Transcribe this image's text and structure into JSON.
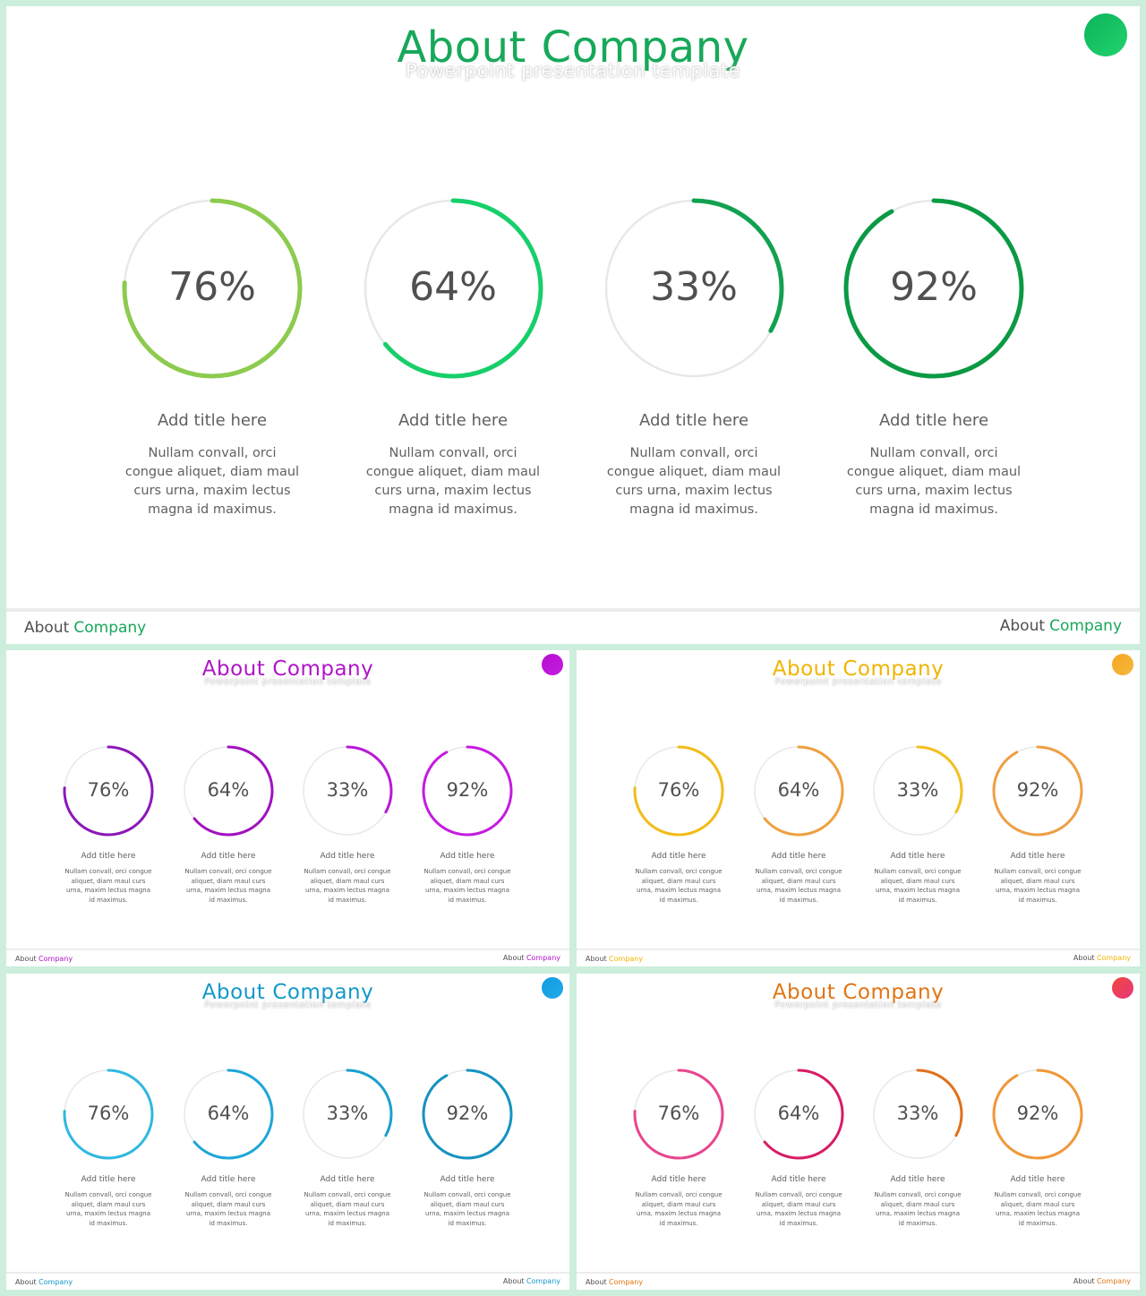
{
  "slides": [
    {
      "id": "green",
      "title_word1": "About",
      "title_word2": "Company",
      "subtitle": "Powerpoint presentation template",
      "accent": "#17a85a",
      "dot_colors": [
        "#0bb35a",
        "#22d36e"
      ],
      "footer": {
        "left_word1": "About",
        "left_word2": "Company",
        "right_word1": "About",
        "right_word2": "Company"
      },
      "items": [
        {
          "value": 76,
          "label": "76%",
          "ring_color": "#8ccb4e",
          "title": "Add title here",
          "desc": "Nullam convall, orci congue aliquet, diam maul curs urna, maxim lectus magna id maximus."
        },
        {
          "value": 64,
          "label": "64%",
          "ring_color": "#17cf6a",
          "title": "Add title here",
          "desc": "Nullam convall, orci congue aliquet, diam maul curs urna, maxim lectus magna id maximus."
        },
        {
          "value": 33,
          "label": "33%",
          "ring_color": "#12a150",
          "title": "Add title here",
          "desc": "Nullam convall, orci congue aliquet, diam maul curs urna, maxim lectus magna id maximus."
        },
        {
          "value": 92,
          "label": "92%",
          "ring_color": "#0b9a44",
          "title": "Add title here",
          "desc": "Nullam convall, orci congue aliquet, diam maul curs urna, maxim lectus magna id maximus."
        }
      ]
    },
    {
      "id": "purple",
      "title_word1": "About",
      "title_word2": "Company",
      "subtitle": "Powerpoint presentation template",
      "accent": "#b014c8",
      "dot_colors": [
        "#b70fd0",
        "#c51de0"
      ],
      "footer": {
        "left_word1": "About",
        "left_word2": "Company",
        "right_word1": "About",
        "right_word2": "Company"
      },
      "items": [
        {
          "value": 76,
          "label": "76%",
          "ring_color": "#8a18b8",
          "title": "Add title here",
          "desc": "Nullam convall, orci congue aliquet, diam maul curs urna, maxim lectus magna id maximus."
        },
        {
          "value": 64,
          "label": "64%",
          "ring_color": "#a012c0",
          "title": "Add title here",
          "desc": "Nullam convall, orci congue aliquet, diam maul curs urna, maxim lectus magna id maximus."
        },
        {
          "value": 33,
          "label": "33%",
          "ring_color": "#b81ad6",
          "title": "Add title here",
          "desc": "Nullam convall, orci congue aliquet, diam maul curs urna, maxim lectus magna id maximus."
        },
        {
          "value": 92,
          "label": "92%",
          "ring_color": "#c31ddf",
          "title": "Add title here",
          "desc": "Nullam convall, orci congue aliquet, diam maul curs urna, maxim lectus magna id maximus."
        }
      ]
    },
    {
      "id": "yellow",
      "title_word1": "About",
      "title_word2": "Company",
      "subtitle": "Powerpoint presentation template",
      "accent": "#f0b400",
      "dot_colors": [
        "#f6a623",
        "#f6b73c"
      ],
      "footer": {
        "left_word1": "About",
        "left_word2": "Company",
        "right_word1": "About",
        "right_word2": "Company"
      },
      "items": [
        {
          "value": 76,
          "label": "76%",
          "ring_color": "#f2bb18",
          "title": "Add title here",
          "desc": "Nullam convall, orci congue aliquet, diam maul curs urna, maxim lectus magna id maximus."
        },
        {
          "value": 64,
          "label": "64%",
          "ring_color": "#efa040",
          "title": "Add title here",
          "desc": "Nullam convall, orci congue aliquet, diam maul curs urna, maxim lectus magna id maximus."
        },
        {
          "value": 33,
          "label": "33%",
          "ring_color": "#f3be1f",
          "title": "Add title here",
          "desc": "Nullam convall, orci congue aliquet, diam maul curs urna, maxim lectus magna id maximus."
        },
        {
          "value": 92,
          "label": "92%",
          "ring_color": "#ee9f45",
          "title": "Add title here",
          "desc": "Nullam convall, orci congue aliquet, diam maul curs urna, maxim lectus magna id maximus."
        }
      ]
    },
    {
      "id": "blue",
      "title_word1": "About",
      "title_word2": "Company",
      "subtitle": "Powerpoint presentation template",
      "accent": "#1398c8",
      "dot_colors": [
        "#0f9ce0",
        "#22aaea"
      ],
      "footer": {
        "left_word1": "About",
        "left_word2": "Company",
        "right_word1": "About",
        "right_word2": "Company"
      },
      "items": [
        {
          "value": 76,
          "label": "76%",
          "ring_color": "#2fb8e0",
          "title": "Add title here",
          "desc": "Nullam convall, orci congue aliquet, diam maul curs urna, maxim lectus magna id maximus."
        },
        {
          "value": 64,
          "label": "64%",
          "ring_color": "#1ea6d8",
          "title": "Add title here",
          "desc": "Nullam convall, orci congue aliquet, diam maul curs urna, maxim lectus magna id maximus."
        },
        {
          "value": 33,
          "label": "33%",
          "ring_color": "#1a9fcc",
          "title": "Add title here",
          "desc": "Nullam convall, orci congue aliquet, diam maul curs urna, maxim lectus magna id maximus."
        },
        {
          "value": 92,
          "label": "92%",
          "ring_color": "#1592c0",
          "title": "Add title here",
          "desc": "Nullam convall, orci congue aliquet, diam maul curs urna, maxim lectus magna id maximus."
        }
      ]
    },
    {
      "id": "orange",
      "title_word1": "About",
      "title_word2": "Company",
      "subtitle": "Powerpoint presentation template",
      "accent": "#e07514",
      "dot_colors": [
        "#f0493e",
        "#e6357a"
      ],
      "footer": {
        "left_word1": "About",
        "left_word2": "Company",
        "right_word1": "About",
        "right_word2": "Company"
      },
      "items": [
        {
          "value": 76,
          "label": "76%",
          "ring_color": "#e8458e",
          "title": "Add title here",
          "desc": "Nullam convall, orci congue aliquet, diam maul curs urna, maxim lectus magna id maximus."
        },
        {
          "value": 64,
          "label": "64%",
          "ring_color": "#d81c66",
          "title": "Add title here",
          "desc": "Nullam convall, orci congue aliquet, diam maul curs urna, maxim lectus magna id maximus."
        },
        {
          "value": 33,
          "label": "33%",
          "ring_color": "#e0701a",
          "title": "Add title here",
          "desc": "Nullam convall, orci congue aliquet, diam maul curs urna, maxim lectus magna id maximus."
        },
        {
          "value": 92,
          "label": "92%",
          "ring_color": "#ef9838",
          "title": "Add title here",
          "desc": "Nullam convall, orci congue aliquet, diam maul curs urna, maxim lectus magna id maximus."
        }
      ]
    }
  ]
}
